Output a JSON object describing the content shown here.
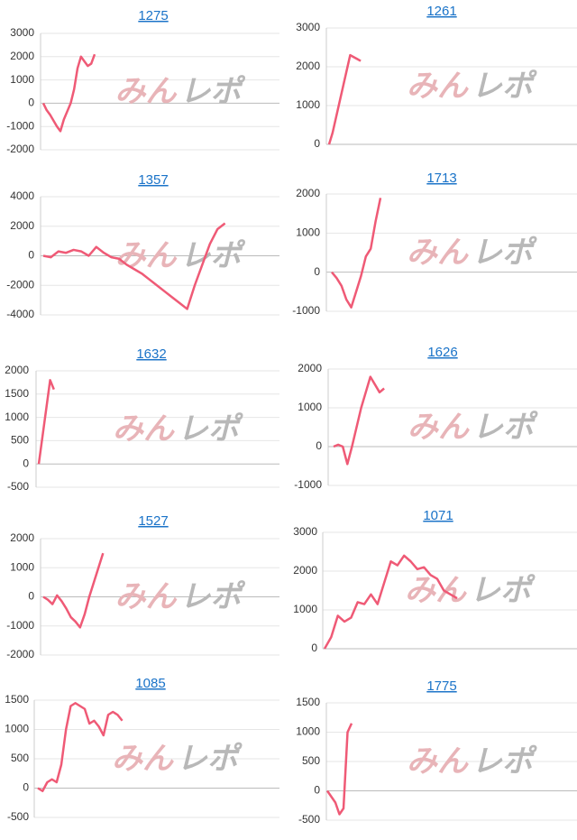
{
  "watermark": [
    "みん",
    "レポ"
  ],
  "chart_data": [
    {
      "type": "line",
      "title": "1275",
      "color": "#ef5a76",
      "grid": true,
      "ylim": [
        -2000,
        3000
      ],
      "yticks": [
        -2000,
        -1000,
        0,
        1000,
        2000,
        3000
      ],
      "values": [
        0,
        -300,
        -500,
        -750,
        -1000,
        -1200,
        -700,
        -350,
        0,
        600,
        1500,
        2000,
        1800,
        1600,
        1700,
        2100
      ]
    },
    {
      "type": "line",
      "title": "1261",
      "color": "#ef5a76",
      "grid": true,
      "ylim": [
        0,
        3000
      ],
      "yticks": [
        0,
        1000,
        2000,
        3000
      ],
      "values": [
        0,
        300,
        700,
        1100,
        1500,
        1900,
        2300,
        2250,
        2200,
        2150
      ]
    },
    {
      "type": "line",
      "title": "1357",
      "color": "#ef5a76",
      "grid": true,
      "ylim": [
        -4000,
        4000
      ],
      "yticks": [
        -4000,
        -2000,
        0,
        2000,
        4000
      ],
      "values": [
        0,
        -100,
        300,
        200,
        400,
        300,
        0,
        600,
        200,
        -100,
        -200,
        -600,
        -900,
        -1200,
        -1600,
        -2000,
        -2400,
        -2800,
        -3200,
        -3600,
        -2000,
        -600,
        800,
        1800,
        2200
      ]
    },
    {
      "type": "line",
      "title": "1713",
      "color": "#ef5a76",
      "grid": true,
      "ylim": [
        -1000,
        2000
      ],
      "yticks": [
        -1000,
        0,
        1000,
        2000
      ],
      "values": [
        0,
        -150,
        -350,
        -700,
        -900,
        -500,
        -100,
        400,
        600,
        1300,
        1900
      ]
    },
    {
      "type": "line",
      "title": "1632",
      "color": "#ef5a76",
      "grid": true,
      "ylim": [
        -500,
        2000
      ],
      "yticks": [
        -500,
        0,
        500,
        1000,
        1500,
        2000
      ],
      "values": [
        0,
        600,
        1200,
        1800,
        1600
      ]
    },
    {
      "type": "line",
      "title": "1626",
      "color": "#ef5a76",
      "grid": true,
      "ylim": [
        -1000,
        2000
      ],
      "yticks": [
        -1000,
        0,
        1000,
        2000
      ],
      "values": [
        0,
        50,
        0,
        -450,
        0,
        500,
        1000,
        1400,
        1800,
        1600,
        1400,
        1500
      ]
    },
    {
      "type": "line",
      "title": "1527",
      "color": "#ef5a76",
      "grid": true,
      "ylim": [
        -2000,
        2000
      ],
      "yticks": [
        -2000,
        -1000,
        0,
        1000,
        2000
      ],
      "values": [
        0,
        -100,
        -250,
        50,
        -150,
        -400,
        -700,
        -850,
        -1050,
        -600,
        0,
        500,
        1000,
        1500
      ]
    },
    {
      "type": "line",
      "title": "1071",
      "color": "#ef5a76",
      "grid": true,
      "ylim": [
        0,
        3000
      ],
      "yticks": [
        0,
        1000,
        2000,
        3000
      ],
      "values": [
        0,
        300,
        850,
        700,
        800,
        1200,
        1150,
        1400,
        1150,
        1700,
        2250,
        2150,
        2400,
        2250,
        2050,
        2100,
        1900,
        1800,
        1500,
        1400,
        1300
      ]
    },
    {
      "type": "line",
      "title": "1085",
      "color": "#ef5a76",
      "grid": true,
      "ylim": [
        -500,
        1500
      ],
      "yticks": [
        -500,
        0,
        500,
        1000,
        1500
      ],
      "values": [
        0,
        -50,
        100,
        150,
        100,
        400,
        1000,
        1400,
        1450,
        1400,
        1350,
        1100,
        1150,
        1050,
        900,
        1250,
        1300,
        1250,
        1150
      ]
    },
    {
      "type": "line",
      "title": "1775",
      "color": "#ef5a76",
      "grid": true,
      "ylim": [
        -500,
        1500
      ],
      "yticks": [
        -500,
        0,
        500,
        1000,
        1500
      ],
      "values": [
        0,
        -100,
        -200,
        -400,
        -300,
        1000,
        1150
      ]
    }
  ]
}
